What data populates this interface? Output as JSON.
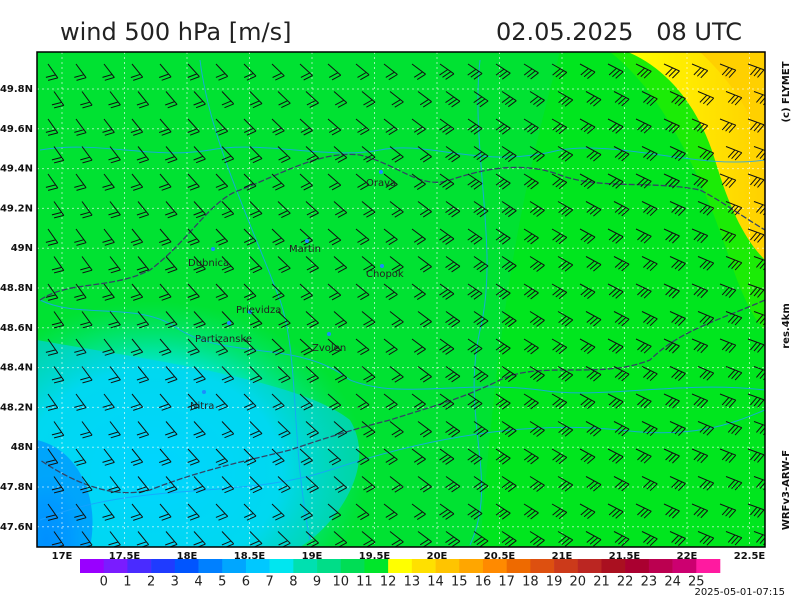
{
  "header": {
    "title": "wind 500 hPa [m/s]",
    "datetime": "02.05.2025   08 UTC"
  },
  "side": {
    "copyright": "(c) FLYMET",
    "resolution": "res.4km",
    "model": "WRFv3-ARW-F"
  },
  "map": {
    "lat_labels": [
      "49.8N",
      "49.6N",
      "49.4N",
      "49.2N",
      "49N",
      "48.8N",
      "48.6N",
      "48.4N",
      "48.2N",
      "48N",
      "47.8N",
      "47.6N"
    ],
    "lon_labels": [
      "17E",
      "17.5E",
      "18E",
      "18.5E",
      "19E",
      "19.5E",
      "20E",
      "20.5E",
      "21E",
      "21.5E",
      "22E",
      "22.5E"
    ],
    "cities": [
      "Orava",
      "Dubnica",
      "Martin",
      "Chopok",
      "Prievidza",
      "Partizanske",
      "Zvolen",
      "Nitra"
    ]
  },
  "colorbar": {
    "labels": [
      "0",
      "1",
      "2",
      "3",
      "4",
      "5",
      "6",
      "7",
      "8",
      "9",
      "10",
      "11",
      "12",
      "13",
      "14",
      "15",
      "16",
      "17",
      "18",
      "19",
      "20",
      "21",
      "22",
      "23",
      "24",
      "25"
    ],
    "colors": [
      "#9900ff",
      "#7a1cff",
      "#4a2bff",
      "#1f3bff",
      "#0055ff",
      "#0080ff",
      "#00a6ff",
      "#00c8ff",
      "#00e6f0",
      "#00e0b0",
      "#00dd88",
      "#00dd55",
      "#00e62a",
      "#ffff00",
      "#ffe000",
      "#ffc400",
      "#ffa600",
      "#ff8a00",
      "#ee6a00",
      "#dd5010",
      "#cc3a1a",
      "#bb2622",
      "#aa1020",
      "#aa0030",
      "#bb0050",
      "#cc0070",
      "#ff1aa0"
    ]
  },
  "footer": {
    "timestamp": "2025-05-01-07:15"
  }
}
